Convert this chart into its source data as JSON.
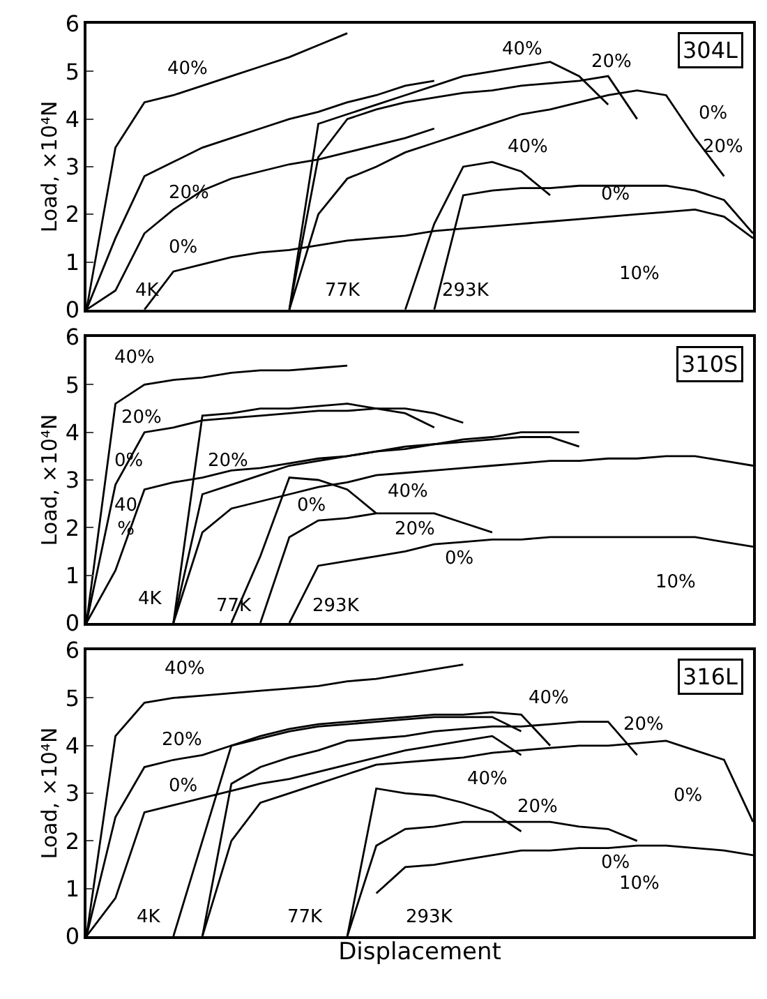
{
  "chart_data": [
    {
      "type": "line",
      "title": "304L",
      "ylabel": "Load, ×10⁴N",
      "ylim": [
        0,
        6
      ],
      "yticks": [
        0,
        1,
        2,
        3,
        4,
        5,
        6
      ],
      "tick_labels": "y",
      "grid": false,
      "marker": "none",
      "line_style": "solid",
      "categories": [
        null,
        null,
        null,
        null,
        null,
        null,
        null,
        null,
        null,
        null,
        null,
        null,
        null,
        null,
        null,
        null,
        null,
        null,
        null,
        null,
        null,
        null,
        null,
        null
      ],
      "series": [
        {
          "color": "#000000",
          "values": [
            0,
            3.4,
            4.35,
            4.5,
            4.7,
            4.9,
            5.1,
            5.3,
            5.55,
            5.8,
            null,
            null,
            null,
            null,
            null,
            null,
            null,
            null,
            null,
            null,
            null,
            null,
            null,
            null
          ]
        },
        {
          "color": "#000000",
          "values": [
            0,
            1.5,
            2.8,
            3.1,
            3.4,
            3.6,
            3.8,
            4.0,
            4.15,
            4.35,
            4.5,
            4.7,
            4.8,
            null,
            null,
            null,
            null,
            null,
            null,
            null,
            null,
            null,
            null,
            null
          ]
        },
        {
          "color": "#000000",
          "values": [
            0,
            0.4,
            1.6,
            2.1,
            2.5,
            2.75,
            2.9,
            3.05,
            3.15,
            3.3,
            3.45,
            3.6,
            3.8,
            null,
            null,
            null,
            null,
            null,
            null,
            null,
            null,
            null,
            null,
            null
          ]
        },
        {
          "color": "#000000",
          "values": [
            null,
            null,
            null,
            null,
            null,
            null,
            null,
            0,
            3.9,
            4.1,
            4.3,
            4.5,
            4.7,
            4.9,
            5.0,
            5.1,
            5.2,
            4.9,
            4.3,
            null,
            null,
            null,
            null,
            null
          ]
        },
        {
          "color": "#000000",
          "values": [
            null,
            null,
            null,
            null,
            null,
            null,
            null,
            0,
            3.2,
            4.0,
            4.2,
            4.35,
            4.45,
            4.55,
            4.6,
            4.7,
            4.75,
            4.8,
            4.9,
            4.0,
            null,
            null,
            null,
            null
          ]
        },
        {
          "color": "#000000",
          "values": [
            null,
            null,
            null,
            null,
            null,
            null,
            null,
            0,
            2.0,
            2.75,
            3.0,
            3.3,
            3.5,
            3.7,
            3.9,
            4.1,
            4.2,
            4.35,
            4.5,
            4.6,
            4.5,
            3.6,
            2.8,
            null
          ]
        },
        {
          "color": "#000000",
          "values": [
            null,
            null,
            null,
            null,
            null,
            null,
            null,
            null,
            null,
            null,
            null,
            0,
            1.8,
            3.0,
            3.1,
            2.9,
            2.4,
            null,
            null,
            null,
            null,
            null,
            null,
            null
          ]
        },
        {
          "color": "#000000",
          "values": [
            null,
            null,
            null,
            null,
            null,
            null,
            null,
            null,
            null,
            null,
            null,
            null,
            0,
            2.4,
            2.5,
            2.55,
            2.55,
            2.6,
            2.6,
            2.6,
            2.6,
            2.5,
            2.3,
            1.6
          ]
        },
        {
          "color": "#000000",
          "values": [
            null,
            null,
            0,
            0.8,
            0.95,
            1.1,
            1.2,
            1.25,
            1.35,
            1.45,
            1.5,
            1.55,
            1.65,
            1.7,
            1.75,
            1.8,
            1.85,
            1.9,
            1.95,
            2.0,
            2.05,
            2.1,
            1.95,
            1.5
          ]
        }
      ],
      "annotations": [
        "40%",
        "20%",
        "0%",
        "4K",
        "77K",
        "293K",
        "40%",
        "20%",
        "0%",
        "40%",
        "20%",
        "0%",
        "10%"
      ]
    },
    {
      "type": "line",
      "title": "310S",
      "ylabel": "Load, ×10⁴N",
      "ylim": [
        0,
        6
      ],
      "yticks": [
        0,
        1,
        2,
        3,
        4,
        5,
        6
      ],
      "tick_labels": "y",
      "grid": false,
      "marker": "none",
      "line_style": "solid",
      "categories": [
        null,
        null,
        null,
        null,
        null,
        null,
        null,
        null,
        null,
        null,
        null,
        null,
        null,
        null,
        null,
        null,
        null,
        null,
        null,
        null,
        null,
        null,
        null,
        null
      ],
      "series": [
        {
          "color": "#000000",
          "values": [
            0,
            4.6,
            5.0,
            5.1,
            5.15,
            5.25,
            5.3,
            5.3,
            5.35,
            5.4,
            null,
            null,
            null,
            null,
            null,
            null,
            null,
            null,
            null,
            null,
            null,
            null,
            null,
            null
          ]
        },
        {
          "color": "#000000",
          "values": [
            0,
            2.9,
            4.0,
            4.1,
            4.25,
            4.3,
            4.35,
            4.4,
            4.45,
            4.45,
            4.5,
            4.5,
            4.4,
            4.2,
            null,
            null,
            null,
            null,
            null,
            null,
            null,
            null,
            null,
            null
          ]
        },
        {
          "color": "#000000",
          "values": [
            0,
            1.1,
            2.8,
            2.95,
            3.05,
            3.2,
            3.25,
            3.35,
            3.45,
            3.5,
            3.6,
            3.65,
            3.75,
            3.8,
            3.85,
            3.9,
            3.9,
            3.7,
            null,
            null,
            null,
            null,
            null,
            null
          ]
        },
        {
          "color": "#000000",
          "values": [
            null,
            null,
            null,
            0,
            4.35,
            4.4,
            4.5,
            4.5,
            4.55,
            4.6,
            4.5,
            4.4,
            4.1,
            null,
            null,
            null,
            null,
            null,
            null,
            null,
            null,
            null,
            null,
            null
          ]
        },
        {
          "color": "#000000",
          "values": [
            null,
            null,
            null,
            0,
            2.7,
            2.9,
            3.1,
            3.3,
            3.4,
            3.5,
            3.6,
            3.7,
            3.75,
            3.85,
            3.9,
            4.0,
            4.0,
            4.0,
            null,
            null,
            null,
            null,
            null,
            null
          ]
        },
        {
          "color": "#000000",
          "values": [
            null,
            null,
            null,
            0,
            1.9,
            2.4,
            2.55,
            2.7,
            2.85,
            2.95,
            3.1,
            3.15,
            3.2,
            3.25,
            3.3,
            3.35,
            3.4,
            3.4,
            3.45,
            3.45,
            3.5,
            3.5,
            3.4,
            3.3
          ]
        },
        {
          "color": "#000000",
          "values": [
            null,
            null,
            null,
            null,
            null,
            0,
            1.4,
            3.05,
            3.0,
            2.8,
            2.3,
            null,
            null,
            null,
            null,
            null,
            null,
            null,
            null,
            null,
            null,
            null,
            null,
            null
          ]
        },
        {
          "color": "#000000",
          "values": [
            null,
            null,
            null,
            null,
            null,
            null,
            0,
            1.8,
            2.15,
            2.2,
            2.3,
            2.3,
            2.3,
            2.1,
            1.9,
            null,
            null,
            null,
            null,
            null,
            null,
            null,
            null,
            null
          ]
        },
        {
          "color": "#000000",
          "values": [
            null,
            null,
            null,
            null,
            null,
            null,
            null,
            0,
            1.2,
            1.3,
            1.4,
            1.5,
            1.65,
            1.7,
            1.75,
            1.75,
            1.8,
            1.8,
            1.8,
            1.8,
            1.8,
            1.8,
            1.7,
            1.6
          ]
        }
      ],
      "annotations": [
        "40%",
        "20%",
        "0%",
        "20%",
        "40\n%",
        "0%",
        "40%",
        "20%",
        "0%",
        "4K",
        "77K",
        "293K",
        "10%"
      ]
    },
    {
      "type": "line",
      "title": "316L",
      "ylabel": "Load, ×10⁴N",
      "xlabel": "Displacement",
      "ylim": [
        0,
        6
      ],
      "yticks": [
        0,
        1,
        2,
        3,
        4,
        5,
        6
      ],
      "tick_labels": "y",
      "grid": false,
      "marker": "none",
      "line_style": "solid",
      "categories": [
        null,
        null,
        null,
        null,
        null,
        null,
        null,
        null,
        null,
        null,
        null,
        null,
        null,
        null,
        null,
        null,
        null,
        null,
        null,
        null,
        null,
        null,
        null,
        null
      ],
      "series": [
        {
          "color": "#000000",
          "values": [
            0,
            4.2,
            4.9,
            5.0,
            5.05,
            5.1,
            5.15,
            5.2,
            5.25,
            5.35,
            5.4,
            5.5,
            5.6,
            5.7,
            null,
            null,
            null,
            null,
            null,
            null,
            null,
            null,
            null,
            null
          ]
        },
        {
          "color": "#000000",
          "values": [
            0,
            2.5,
            3.55,
            3.7,
            3.8,
            4.0,
            4.15,
            4.3,
            4.4,
            4.45,
            4.5,
            4.55,
            4.6,
            4.6,
            4.6,
            4.3,
            null,
            null,
            null,
            null,
            null,
            null,
            null,
            null
          ]
        },
        {
          "color": "#000000",
          "values": [
            0,
            0.8,
            2.6,
            2.75,
            2.9,
            3.05,
            3.2,
            3.3,
            3.45,
            3.6,
            3.75,
            3.9,
            4.0,
            4.1,
            4.2,
            3.8,
            null,
            null,
            null,
            null,
            null,
            null,
            null,
            null
          ]
        },
        {
          "color": "#000000",
          "values": [
            null,
            null,
            null,
            0,
            2.0,
            4.0,
            4.2,
            4.35,
            4.45,
            4.5,
            4.55,
            4.6,
            4.65,
            4.65,
            4.7,
            4.65,
            4.0,
            null,
            null,
            null,
            null,
            null,
            null,
            null
          ]
        },
        {
          "color": "#000000",
          "values": [
            null,
            null,
            null,
            null,
            0,
            3.2,
            3.55,
            3.75,
            3.9,
            4.1,
            4.15,
            4.2,
            4.3,
            4.35,
            4.4,
            4.4,
            4.45,
            4.5,
            4.5,
            3.8,
            null,
            null,
            null,
            null
          ]
        },
        {
          "color": "#000000",
          "values": [
            null,
            null,
            null,
            null,
            0,
            2.0,
            2.8,
            3.0,
            3.2,
            3.4,
            3.6,
            3.65,
            3.7,
            3.75,
            3.85,
            3.9,
            3.95,
            4.0,
            4.0,
            4.05,
            4.1,
            3.9,
            3.7,
            2.4
          ]
        },
        {
          "color": "#000000",
          "values": [
            null,
            null,
            null,
            null,
            null,
            null,
            null,
            null,
            null,
            0,
            3.1,
            3.0,
            2.95,
            2.8,
            2.6,
            2.2,
            null,
            null,
            null,
            null,
            null,
            null,
            null,
            null
          ]
        },
        {
          "color": "#000000",
          "values": [
            null,
            null,
            null,
            null,
            null,
            null,
            null,
            null,
            null,
            0,
            1.9,
            2.25,
            2.3,
            2.4,
            2.4,
            2.4,
            2.4,
            2.3,
            2.25,
            2.0,
            null,
            null,
            null,
            null
          ]
        },
        {
          "color": "#000000",
          "values": [
            null,
            null,
            null,
            null,
            null,
            null,
            null,
            null,
            null,
            null,
            0.9,
            1.45,
            1.5,
            1.6,
            1.7,
            1.8,
            1.8,
            1.85,
            1.85,
            1.9,
            1.9,
            1.85,
            1.8,
            1.7
          ]
        }
      ],
      "annotations": [
        "40%",
        "20%",
        "0%",
        "40%",
        "20%",
        "0%",
        "40%",
        "20%",
        "0%",
        "4K",
        "77K",
        "293K",
        "10%"
      ]
    }
  ]
}
